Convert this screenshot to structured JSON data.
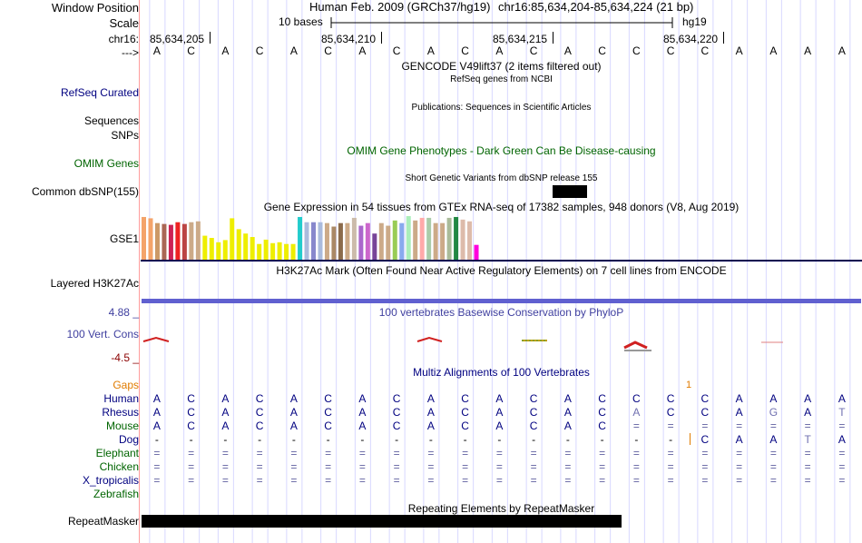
{
  "colors": {
    "navy": "#000080",
    "green": "#006400",
    "orange": "#e07b00",
    "maroon": "#8b0000",
    "phylo": "#3f3f9f",
    "grid": "#d8d8ff",
    "divider": "#ff9c9c"
  },
  "labels": {
    "window_position": "Window Position",
    "scale": "Scale",
    "chr": "chr16:",
    "strand": "--->",
    "refseq": "RefSeq Curated",
    "sequences": "Sequences",
    "snps": "SNPs",
    "omim": "OMIM Genes",
    "common_dbsnp": "Common dbSNP(155)",
    "gse1": "GSE1",
    "h3k27ac": "Layered H3K27Ac",
    "vert_cons": "100 Vert. Cons",
    "phylo_max": "4.88 _",
    "phylo_min": "-4.5 _",
    "gaps": "Gaps",
    "repeatmasker": "RepeatMasker"
  },
  "header": {
    "assembly": "Human Feb. 2009 (GRCh37/hg19)",
    "position": "chr16:85,634,204-85,634,224 (21 bp)",
    "scale_text": "10 bases",
    "scale_assembly": "hg19",
    "coords": [
      "85,634,205",
      "85,634,210",
      "85,634,215",
      "85,634,220"
    ]
  },
  "sequence": [
    "A",
    "C",
    "A",
    "C",
    "A",
    "C",
    "A",
    "C",
    "A",
    "C",
    "A",
    "C",
    "A",
    "C",
    "C",
    "C",
    "C",
    "A",
    "A",
    "A",
    "A"
  ],
  "tracks": {
    "gencode": "GENCODE V49lift37 (2 items filtered out)",
    "refseq_title": "RefSeq genes from NCBI",
    "publications": "Publications: Sequences in Scientific Articles",
    "omim_title": "OMIM Gene Phenotypes - Dark Green Can Be Disease-causing",
    "dbsnp_title": "Short Genetic Variants from dbSNP release 155",
    "gtex_title": "Gene Expression in 54 tissues from GTEx RNA-seq of 17382 samples, 948 donors (V8, Aug 2019)",
    "h3k27ac_title": "H3K27Ac Mark (Often Found Near Active Regulatory Elements) on 7 cell lines from ENCODE",
    "phylo_title": "100 vertebrates Basewise Conservation by PhyloP",
    "multiz_title": "Multiz Alignments of 100 Vertebrates",
    "gap_mark": "1",
    "repeat_title": "Repeating Elements by RepeatMasker"
  },
  "gtex_bars": [
    {
      "color": "#f4a46a",
      "value": 0.98
    },
    {
      "color": "#f4a46a",
      "value": 0.95
    },
    {
      "color": "#cc9966",
      "value": 0.84
    },
    {
      "color": "#aa6655",
      "value": 0.82
    },
    {
      "color": "#cc2255",
      "value": 0.8
    },
    {
      "color": "#ee2222",
      "value": 0.86
    },
    {
      "color": "#bb4444",
      "value": 0.82
    },
    {
      "color": "#ccaa88",
      "value": 0.86
    },
    {
      "color": "#ccaa88",
      "value": 0.88
    },
    {
      "color": "#eeee00",
      "value": 0.55
    },
    {
      "color": "#eeee00",
      "value": 0.5
    },
    {
      "color": "#eeee00",
      "value": 0.4
    },
    {
      "color": "#eeee00",
      "value": 0.45
    },
    {
      "color": "#eeee00",
      "value": 0.95
    },
    {
      "color": "#eeee00",
      "value": 0.7
    },
    {
      "color": "#eeee00",
      "value": 0.6
    },
    {
      "color": "#eeee00",
      "value": 0.52
    },
    {
      "color": "#eeee00",
      "value": 0.36
    },
    {
      "color": "#eeee00",
      "value": 0.46
    },
    {
      "color": "#eeee00",
      "value": 0.38
    },
    {
      "color": "#eeee00",
      "value": 0.4
    },
    {
      "color": "#eeee00",
      "value": 0.36
    },
    {
      "color": "#eeee00",
      "value": 0.36
    },
    {
      "color": "#22cccc",
      "value": 0.98
    },
    {
      "color": "#aabbdd",
      "value": 0.86
    },
    {
      "color": "#8888cc",
      "value": 0.86
    },
    {
      "color": "#aabbdd",
      "value": 0.86
    },
    {
      "color": "#ccaa88",
      "value": 0.84
    },
    {
      "color": "#aa8866",
      "value": 0.76
    },
    {
      "color": "#8b6b4b",
      "value": 0.84
    },
    {
      "color": "#ccaa88",
      "value": 0.84
    },
    {
      "color": "#ccbbaa",
      "value": 0.96
    },
    {
      "color": "#aa66cc",
      "value": 0.78
    },
    {
      "color": "#cc66cc",
      "value": 0.84
    },
    {
      "color": "#774499",
      "value": 0.6
    },
    {
      "color": "#ccaa88",
      "value": 0.84
    },
    {
      "color": "#ccaa88",
      "value": 0.78
    },
    {
      "color": "#99cc55",
      "value": 0.9
    },
    {
      "color": "#88aaee",
      "value": 0.84
    },
    {
      "color": "#aaeebb",
      "value": 1.0
    },
    {
      "color": "#ccaa88",
      "value": 0.9
    },
    {
      "color": "#ffaaaa",
      "value": 0.96
    },
    {
      "color": "#aaccaa",
      "value": 0.96
    },
    {
      "color": "#ccaa88",
      "value": 0.84
    },
    {
      "color": "#ccaa88",
      "value": 0.84
    },
    {
      "color": "#aabb99",
      "value": 0.96
    },
    {
      "color": "#228844",
      "value": 0.98
    },
    {
      "color": "#ddbbaa",
      "value": 0.92
    },
    {
      "color": "#ddbbaa",
      "value": 0.88
    },
    {
      "color": "#ff00dd",
      "value": 0.34
    }
  ],
  "species": [
    {
      "name": "Human",
      "cls": "aln",
      "color": "#000080",
      "cells": [
        "A",
        "C",
        "A",
        "C",
        "A",
        "C",
        "A",
        "C",
        "A",
        "C",
        "A",
        "C",
        "A",
        "C",
        "C",
        "C",
        "C",
        "A",
        "A",
        "A",
        "A"
      ]
    },
    {
      "name": "Rhesus",
      "cls": "aln",
      "color": "#000080",
      "cells": [
        "A",
        "C",
        "A",
        "C",
        "A",
        "C",
        "A",
        "C",
        "A",
        "C",
        "A",
        "C",
        "A",
        "C",
        "A",
        "C",
        "C",
        "A",
        "G",
        "A",
        "T"
      ]
    },
    {
      "name": "Mouse",
      "cls": "aln",
      "color": "#006400",
      "cells": [
        "A",
        "C",
        "A",
        "C",
        "A",
        "C",
        "A",
        "C",
        "A",
        "C",
        "A",
        "C",
        "A",
        "C",
        "=",
        "=",
        "=",
        "=",
        "=",
        "=",
        "="
      ]
    },
    {
      "name": "Dog",
      "cls": "aln",
      "color": "#000080",
      "cells": [
        "-",
        "-",
        "-",
        "-",
        "-",
        "-",
        "-",
        "-",
        "-",
        "-",
        "-",
        "-",
        "-",
        "-",
        "-",
        "-",
        "C",
        "A",
        "A",
        "T",
        "A"
      ]
    },
    {
      "name": "Elephant",
      "cls": "aln",
      "color": "#006400",
      "cells": [
        "=",
        "=",
        "=",
        "=",
        "=",
        "=",
        "=",
        "=",
        "=",
        "=",
        "=",
        "=",
        "=",
        "=",
        "=",
        "=",
        "=",
        "=",
        "=",
        "=",
        "="
      ]
    },
    {
      "name": "Chicken",
      "cls": "aln",
      "color": "#006400",
      "cells": [
        "=",
        "=",
        "=",
        "=",
        "=",
        "=",
        "=",
        "=",
        "=",
        "=",
        "=",
        "=",
        "=",
        "=",
        "=",
        "=",
        "=",
        "=",
        "=",
        "=",
        "="
      ]
    },
    {
      "name": "X_tropicalis",
      "cls": "aln",
      "color": "#000080",
      "cells": [
        "=",
        "=",
        "=",
        "=",
        "=",
        "=",
        "=",
        "=",
        "=",
        "=",
        "=",
        "=",
        "=",
        "=",
        "=",
        "=",
        "=",
        "=",
        "=",
        "=",
        "="
      ]
    },
    {
      "name": "Zebrafish",
      "cls": "aln",
      "color": "#006400",
      "cells": []
    }
  ]
}
